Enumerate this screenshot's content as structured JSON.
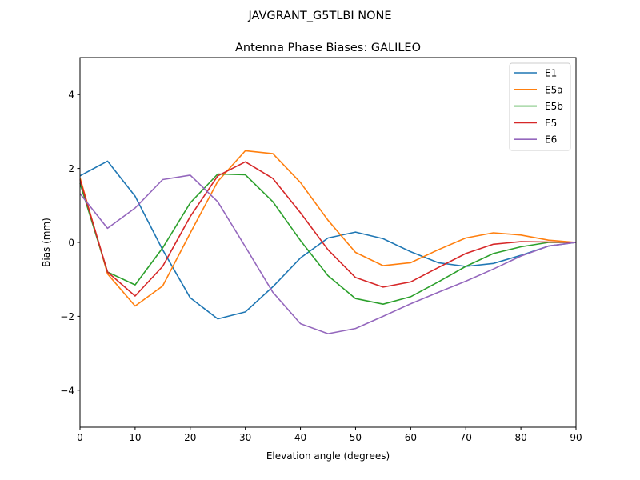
{
  "chart_data": {
    "type": "line",
    "suptitle": "JAVGRANT_G5TLBI NONE",
    "title": "Antenna Phase Biases: GALILEO",
    "xlabel": "Elevation angle (degrees)",
    "ylabel": "Bias (mm)",
    "xlim": [
      0,
      90
    ],
    "ylim": [
      -5,
      5
    ],
    "xticks": [
      0,
      10,
      20,
      30,
      40,
      50,
      60,
      70,
      80,
      90
    ],
    "yticks": [
      -4,
      -2,
      0,
      2,
      4
    ],
    "ytick_labels": [
      "−4",
      "−2",
      "0",
      "2",
      "4"
    ],
    "grid": false,
    "legend_position": "top-right",
    "x": [
      0,
      5,
      10,
      15,
      20,
      25,
      30,
      35,
      40,
      45,
      50,
      55,
      60,
      65,
      70,
      75,
      80,
      85,
      90
    ],
    "series": [
      {
        "name": "E1",
        "color": "#1f77b4",
        "values": [
          1.8,
          2.2,
          1.25,
          -0.2,
          -1.5,
          -2.07,
          -1.88,
          -1.2,
          -0.42,
          0.12,
          0.28,
          0.1,
          -0.25,
          -0.55,
          -0.65,
          -0.57,
          -0.35,
          -0.1,
          0
        ]
      },
      {
        "name": "E5a",
        "color": "#ff7f0e",
        "values": [
          1.75,
          -0.85,
          -1.72,
          -1.18,
          0.25,
          1.65,
          2.48,
          2.4,
          1.62,
          0.6,
          -0.27,
          -0.63,
          -0.55,
          -0.2,
          0.12,
          0.26,
          0.2,
          0.06,
          0
        ]
      },
      {
        "name": "E5b",
        "color": "#2ca02c",
        "values": [
          1.6,
          -0.8,
          -1.15,
          -0.15,
          1.07,
          1.85,
          1.83,
          1.1,
          0.05,
          -0.9,
          -1.52,
          -1.67,
          -1.47,
          -1.07,
          -0.65,
          -0.3,
          -0.12,
          0.0,
          0
        ]
      },
      {
        "name": "E5",
        "color": "#d62728",
        "values": [
          1.7,
          -0.8,
          -1.45,
          -0.65,
          0.7,
          1.8,
          2.18,
          1.73,
          0.8,
          -0.2,
          -0.95,
          -1.21,
          -1.07,
          -0.68,
          -0.3,
          -0.05,
          0.02,
          0.01,
          0
        ]
      },
      {
        "name": "E6",
        "color": "#9467bd",
        "values": [
          1.32,
          0.38,
          0.93,
          1.7,
          1.82,
          1.1,
          -0.12,
          -1.35,
          -2.2,
          -2.47,
          -2.33,
          -2.0,
          -1.66,
          -1.35,
          -1.05,
          -0.72,
          -0.37,
          -0.1,
          0
        ]
      }
    ]
  }
}
